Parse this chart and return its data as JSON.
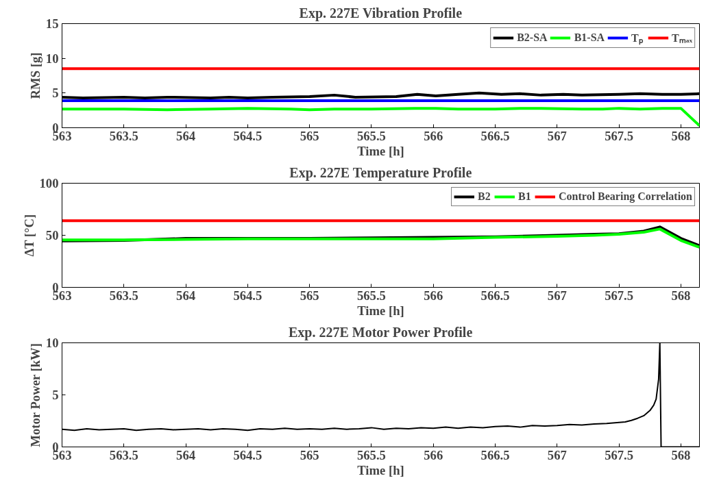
{
  "chart_data": [
    {
      "type": "line",
      "title": "Exp. 227E Vibration Profile",
      "xlabel": "Time [h]",
      "ylabel": "RMS [g]",
      "xlim": [
        563,
        568.15
      ],
      "xticks": [
        563,
        563.5,
        564,
        564.5,
        565,
        565.5,
        566,
        566.5,
        567,
        567.5,
        568
      ],
      "ylim": [
        0,
        15
      ],
      "yticks": [
        0,
        5,
        10,
        15
      ],
      "grid": false,
      "legend": "top right",
      "marker": "none",
      "line_style": "solid",
      "series": [
        {
          "name": "B2-SA",
          "color": "#000000",
          "x": [
            563,
            563.17,
            563.5,
            563.67,
            563.85,
            564.2,
            564.35,
            564.5,
            564.7,
            565.0,
            565.2,
            565.37,
            565.7,
            565.87,
            566.02,
            566.2,
            566.37,
            566.55,
            566.7,
            566.87,
            567.05,
            567.2,
            567.5,
            567.67,
            567.85,
            568.0,
            568.15
          ],
          "values": [
            4.4,
            4.3,
            4.4,
            4.3,
            4.4,
            4.3,
            4.4,
            4.3,
            4.4,
            4.5,
            4.7,
            4.4,
            4.5,
            4.8,
            4.6,
            4.8,
            5.0,
            4.8,
            4.9,
            4.7,
            4.8,
            4.7,
            4.8,
            4.9,
            4.8,
            4.8,
            4.9
          ]
        },
        {
          "name": "B1-SA",
          "color": "#00ff00",
          "x": [
            563,
            563.5,
            563.85,
            564.2,
            564.5,
            564.85,
            565.0,
            565.2,
            565.5,
            565.85,
            566.02,
            566.2,
            566.5,
            566.7,
            566.87,
            567.2,
            567.37,
            567.5,
            567.67,
            567.85,
            568.0,
            568.15
          ],
          "values": [
            2.7,
            2.7,
            2.6,
            2.7,
            2.8,
            2.7,
            2.6,
            2.7,
            2.7,
            2.8,
            2.8,
            2.7,
            2.7,
            2.8,
            2.8,
            2.7,
            2.7,
            2.8,
            2.7,
            2.8,
            2.8,
            0.3
          ]
        }
      ],
      "ref_lines": [
        {
          "axis": "y",
          "value": 3.9,
          "label": "Tₚ",
          "color": "#0000ff"
        },
        {
          "axis": "y",
          "value": 8.5,
          "label": "Tₘₐₓ",
          "color": "#ff0000"
        }
      ]
    },
    {
      "type": "line",
      "title": "Exp. 227E Temperature Profile",
      "xlabel": "Time [h]",
      "ylabel": "ΔT [°C]",
      "xlim": [
        563,
        568.15
      ],
      "xticks": [
        563,
        563.5,
        564,
        564.5,
        565,
        565.5,
        566,
        566.5,
        567,
        567.5,
        568
      ],
      "ylim": [
        0,
        100
      ],
      "yticks": [
        0,
        50,
        100
      ],
      "grid": false,
      "legend": "top right",
      "marker": "none",
      "line_style": "solid",
      "series": [
        {
          "name": "B2",
          "color": "#000000",
          "x": [
            563,
            563.5,
            564,
            564.5,
            565,
            565.5,
            566,
            566.5,
            567,
            567.3,
            567.5,
            567.7,
            567.83,
            568,
            568.15
          ],
          "values": [
            44.5,
            45,
            47,
            47,
            47,
            47.5,
            48,
            48.5,
            50,
            51,
            51.5,
            54,
            58,
            47,
            40
          ]
        },
        {
          "name": "B1",
          "color": "#00ff00",
          "x": [
            563,
            563.5,
            564,
            564.5,
            565,
            565.5,
            566,
            566.5,
            567,
            567.3,
            567.5,
            567.7,
            567.83,
            568,
            568.15
          ],
          "values": [
            45.5,
            45.5,
            46,
            46.5,
            46.5,
            46.5,
            46.5,
            48,
            49,
            50,
            51,
            53,
            56,
            45,
            38.5
          ]
        }
      ],
      "ref_lines": [
        {
          "axis": "y",
          "value": 64,
          "label": "Control Bearing Correlation",
          "color": "#ff0000"
        }
      ]
    },
    {
      "type": "line",
      "title": "Exp. 227E Motor Power Profile",
      "xlabel": "Time [h]",
      "ylabel": "Motor Power [kW]",
      "xlim": [
        563,
        568.15
      ],
      "xticks": [
        563,
        563.5,
        564,
        564.5,
        565,
        565.5,
        566,
        566.5,
        567,
        567.5,
        568
      ],
      "ylim": [
        0,
        10
      ],
      "yticks": [
        0,
        5,
        10
      ],
      "grid": false,
      "legend": false,
      "marker": "none",
      "line_style": "solid",
      "series": [
        {
          "color": "#000000",
          "x": [
            563,
            563.1,
            563.2,
            563.3,
            563.4,
            563.5,
            563.6,
            563.7,
            563.8,
            563.9,
            564,
            564.1,
            564.2,
            564.3,
            564.4,
            564.5,
            564.6,
            564.7,
            564.8,
            564.9,
            565,
            565.1,
            565.2,
            565.3,
            565.4,
            565.5,
            565.6,
            565.7,
            565.8,
            565.9,
            566,
            566.1,
            566.2,
            566.3,
            566.4,
            566.5,
            566.6,
            566.7,
            566.8,
            566.9,
            567,
            567.1,
            567.2,
            567.3,
            567.4,
            567.5,
            567.55,
            567.6,
            567.65,
            567.7,
            567.75,
            567.78,
            567.8,
            567.82,
            567.83,
            567.84,
            568.15
          ],
          "values": [
            1.7,
            1.6,
            1.75,
            1.65,
            1.7,
            1.75,
            1.6,
            1.7,
            1.75,
            1.65,
            1.7,
            1.75,
            1.65,
            1.75,
            1.7,
            1.6,
            1.75,
            1.7,
            1.8,
            1.7,
            1.75,
            1.7,
            1.8,
            1.7,
            1.75,
            1.85,
            1.7,
            1.8,
            1.75,
            1.85,
            1.8,
            1.9,
            1.8,
            1.9,
            1.85,
            1.95,
            2.0,
            1.9,
            2.05,
            2.0,
            2.05,
            2.15,
            2.1,
            2.2,
            2.25,
            2.35,
            2.4,
            2.55,
            2.75,
            3.0,
            3.5,
            4.0,
            4.6,
            6.5,
            10,
            0,
            0
          ]
        }
      ]
    }
  ]
}
